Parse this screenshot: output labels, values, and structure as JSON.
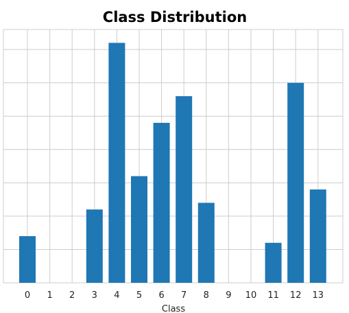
{
  "colors": {
    "bar": "#1f77b4",
    "grid": "#cccccc",
    "frame": "#cccccc",
    "background": "#ffffff"
  },
  "chart_data": {
    "type": "bar",
    "title": "Class Distribution",
    "xlabel": "Class",
    "ylabel": "",
    "categories": [
      "0",
      "1",
      "2",
      "3",
      "4",
      "5",
      "6",
      "7",
      "8",
      "9",
      "10",
      "11",
      "12",
      "13"
    ],
    "values": [
      7,
      0,
      0,
      11,
      36,
      16,
      24,
      28,
      12,
      0,
      0,
      6,
      30,
      14
    ],
    "ylim": [
      0,
      38
    ],
    "grid": true,
    "legend": "none"
  }
}
